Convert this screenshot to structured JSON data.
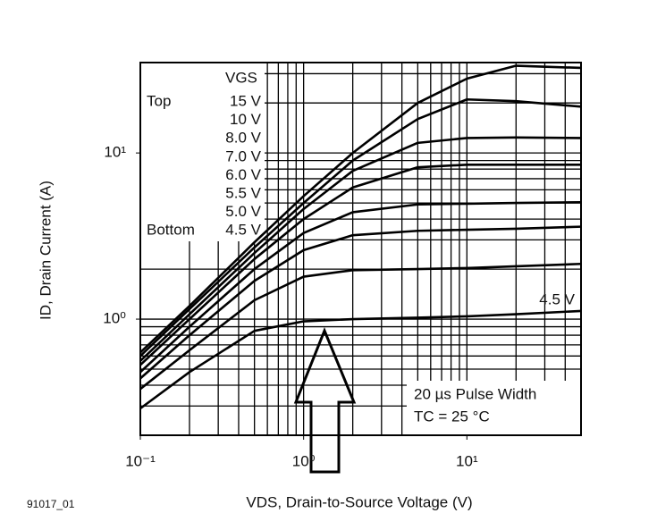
{
  "chart_data": {
    "type": "line",
    "x_label": "VDS, Drain-to-Source Voltage (V)",
    "y_label": "ID, Drain Current (A)",
    "figure_id": "91017_01",
    "log_x": true,
    "log_y": true,
    "grid": true,
    "color": "#000000",
    "xlim": [
      0.1,
      50
    ],
    "ylim": [
      0.2,
      35
    ],
    "xticks": [
      {
        "value": 0.1,
        "label": "10⁻¹"
      },
      {
        "value": 1,
        "label": "10⁰"
      },
      {
        "value": 10,
        "label": "10¹"
      }
    ],
    "yticks": [
      {
        "value": 1,
        "label": "10⁰"
      },
      {
        "value": 10,
        "label": "10¹"
      }
    ],
    "xgrid": [
      0.2,
      0.3,
      0.4,
      0.5,
      0.6,
      0.7,
      0.8,
      0.9,
      1,
      2,
      3,
      4,
      5,
      6,
      7,
      8,
      9,
      10,
      20,
      30,
      40
    ],
    "ygrid": [
      0.3,
      0.4,
      0.5,
      0.6,
      0.7,
      0.8,
      0.9,
      1,
      2,
      3,
      4,
      5,
      6,
      7,
      8,
      9,
      10,
      20,
      30
    ],
    "legend_title": "VGS",
    "legend_top": "Top",
    "legend_bottom": "Bottom",
    "annotations": [
      "4.5 V",
      "20 µs Pulse Width",
      "TC = 25 °C"
    ],
    "x": [
      0.1,
      0.2,
      0.5,
      1,
      2,
      5,
      10,
      20,
      50
    ],
    "series": [
      {
        "name": "15 V",
        "color": "#000000",
        "values": [
          0.63,
          1.2,
          2.9,
          5.5,
          10,
          20,
          28,
          33.5,
          32.5
        ]
      },
      {
        "name": "10 V",
        "color": "#000000",
        "values": [
          0.6,
          1.15,
          2.7,
          5.0,
          9.0,
          16,
          21,
          20.5,
          19
        ]
      },
      {
        "name": "8.0 V",
        "color": "#000000",
        "values": [
          0.56,
          1.07,
          2.5,
          4.6,
          7.8,
          11.5,
          12.3,
          12.4,
          12.3
        ]
      },
      {
        "name": "7.0 V",
        "color": "#000000",
        "values": [
          0.53,
          1.0,
          2.3,
          4.0,
          6.2,
          8.2,
          8.5,
          8.5,
          8.5
        ]
      },
      {
        "name": "6.0 V",
        "color": "#000000",
        "values": [
          0.48,
          0.9,
          2.0,
          3.3,
          4.4,
          4.9,
          4.95,
          5.0,
          5.05
        ]
      },
      {
        "name": "5.5 V",
        "color": "#000000",
        "values": [
          0.44,
          0.8,
          1.7,
          2.6,
          3.2,
          3.4,
          3.45,
          3.5,
          3.6
        ]
      },
      {
        "name": "5.0 V",
        "color": "#000000",
        "values": [
          0.38,
          0.65,
          1.3,
          1.8,
          1.97,
          2.0,
          2.03,
          2.08,
          2.15
        ]
      },
      {
        "name": "4.5 V",
        "color": "#000000",
        "values": [
          0.29,
          0.48,
          0.85,
          0.97,
          1.0,
          1.02,
          1.04,
          1.07,
          1.12
        ]
      }
    ]
  }
}
